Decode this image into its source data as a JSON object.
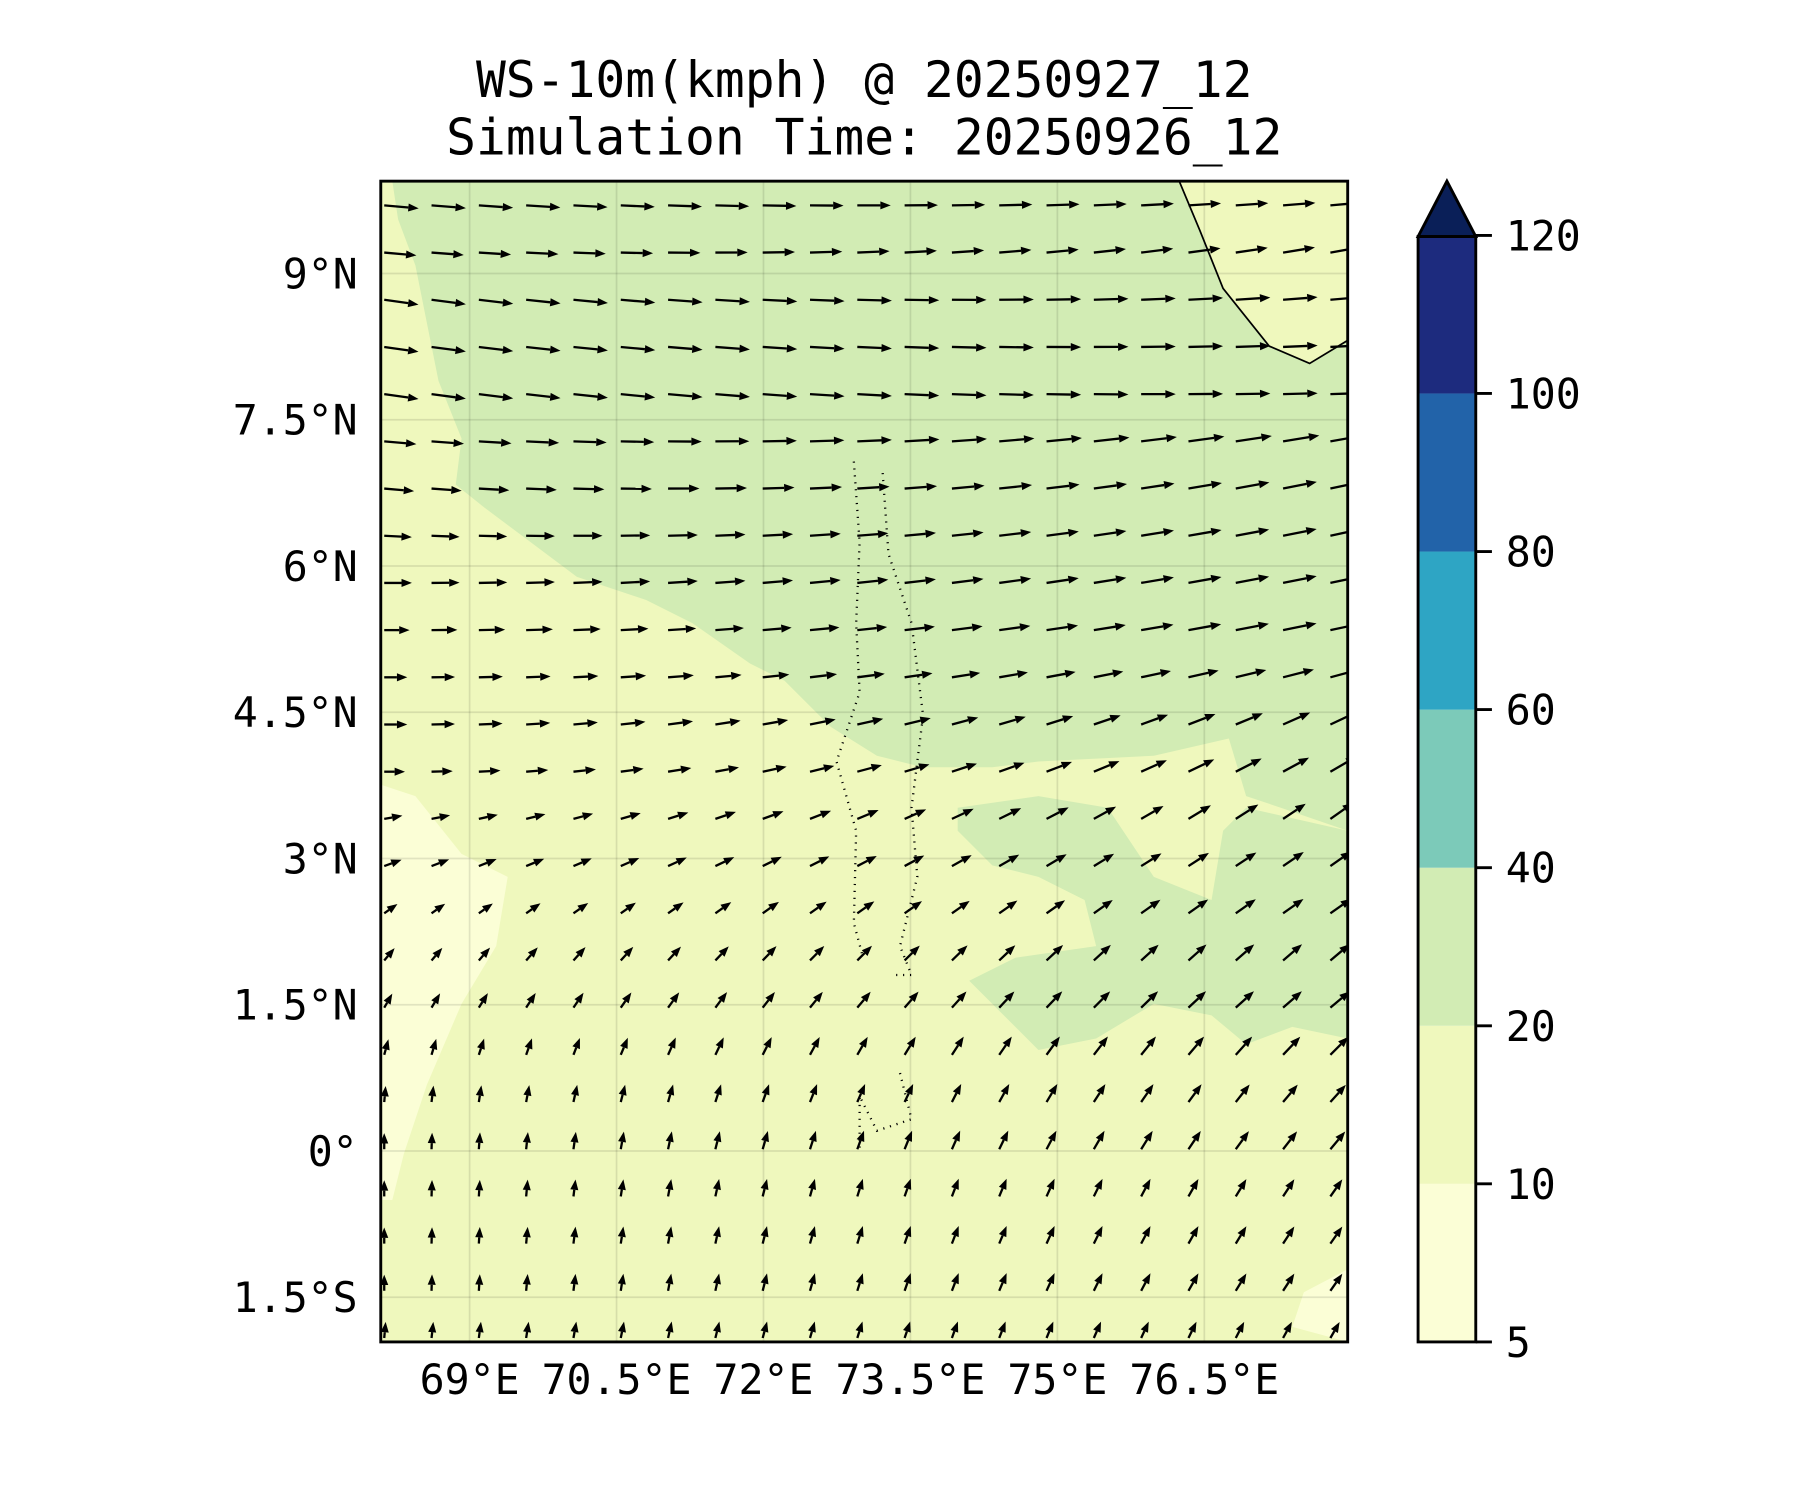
{
  "chart_data": {
    "type": "heatmap",
    "subtype": "filled-contour map with wind vectors (quiver)",
    "title": "WS-10m(kmph) @ 20250927_12",
    "subtitle": "Simulation Time: 20250926_12",
    "xlabel": "",
    "ylabel": "",
    "xlim": [
      68.1,
      78.0
    ],
    "ylim": [
      -2.0,
      9.95
    ],
    "x_ticks": [
      69,
      70.5,
      72,
      73.5,
      75,
      76.5
    ],
    "x_tick_labels": [
      "69°E",
      "70.5°E",
      "72°E",
      "73.5°E",
      "75°E",
      "76.5°E"
    ],
    "y_ticks": [
      9,
      7.5,
      6,
      4.5,
      3,
      1.5,
      0,
      -1.5
    ],
    "y_tick_labels": [
      "9°N",
      "7.5°N",
      "6°N",
      "4.5°N",
      "3°N",
      "1.5°N",
      "0°",
      "1.5°S"
    ],
    "grid": true,
    "colorbar": {
      "placement": "right",
      "extend": "max",
      "levels": [
        5,
        10,
        20,
        40,
        60,
        80,
        100,
        120
      ],
      "tick_labels": [
        "5",
        "10",
        "20",
        "40",
        "60",
        "80",
        "100",
        "120"
      ],
      "colors": [
        "#fbfed6",
        "#eff8bd",
        "#d2ecb4",
        "#7ccab9",
        "#2ea5c4",
        "#2263a9",
        "#1d2b7e"
      ],
      "extend_color": "#0a1f58"
    },
    "wind_field": {
      "description_rows": "north to south, 25 rows x 21 columns; per row: [direction_deg_west_edge, direction_deg_east_edge, speed_kmph_west, speed_kmph_east], direction counterclockwise from east",
      "columns": 21,
      "rows": [
        [
          -5,
          5,
          30,
          28
        ],
        [
          -5,
          10,
          28,
          28
        ],
        [
          -8,
          5,
          30,
          30
        ],
        [
          -8,
          3,
          30,
          30
        ],
        [
          -8,
          2,
          30,
          30
        ],
        [
          -5,
          10,
          28,
          32
        ],
        [
          -5,
          12,
          26,
          30
        ],
        [
          -3,
          12,
          24,
          30
        ],
        [
          0,
          12,
          24,
          30
        ],
        [
          0,
          12,
          22,
          30
        ],
        [
          0,
          15,
          20,
          28
        ],
        [
          0,
          25,
          20,
          26
        ],
        [
          0,
          30,
          18,
          26
        ],
        [
          10,
          35,
          16,
          24
        ],
        [
          20,
          35,
          16,
          22
        ],
        [
          35,
          35,
          14,
          22
        ],
        [
          50,
          40,
          14,
          22
        ],
        [
          60,
          40,
          14,
          22
        ],
        [
          75,
          45,
          14,
          22
        ],
        [
          85,
          48,
          14,
          20
        ],
        [
          90,
          50,
          14,
          20
        ],
        [
          90,
          55,
          14,
          18
        ],
        [
          90,
          55,
          14,
          18
        ],
        [
          90,
          55,
          14,
          18
        ],
        [
          85,
          60,
          14,
          16
        ]
      ]
    }
  }
}
